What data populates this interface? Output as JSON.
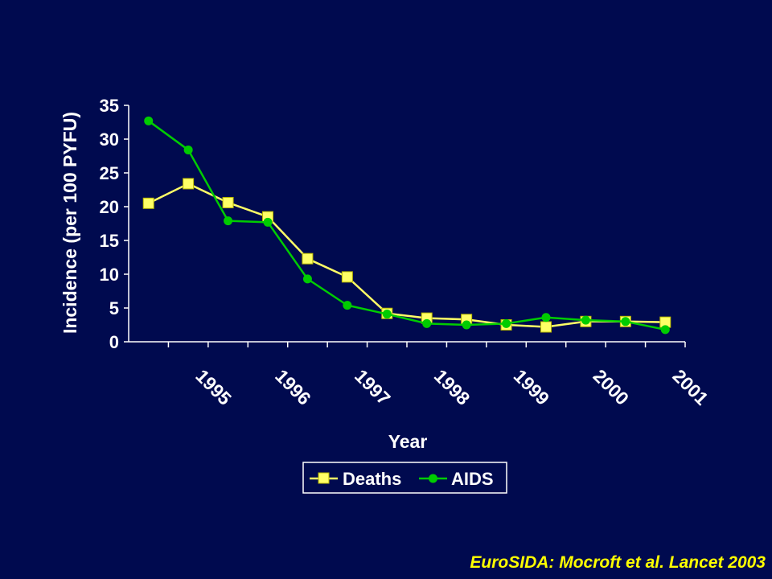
{
  "chart_data": {
    "type": "line",
    "title": "",
    "xlabel": "Year",
    "ylabel": "Incidence (per 100 PYFU)",
    "ylim": [
      0,
      35
    ],
    "y_ticks": [
      "0",
      "5",
      "10",
      "15",
      "20",
      "25",
      "30",
      "35"
    ],
    "x_tick_labels": [
      "1995",
      "1996",
      "1997",
      "1998",
      "1999",
      "2000",
      "2001"
    ],
    "x": [
      1994.25,
      1994.75,
      1995.25,
      1995.75,
      1996.25,
      1996.75,
      1997.25,
      1997.75,
      1998.25,
      1998.75,
      1999.25,
      1999.75,
      2000.25,
      2000.75
    ],
    "series": [
      {
        "name": "Deaths",
        "values": [
          20.5,
          23.4,
          20.6,
          18.5,
          12.3,
          9.6,
          4.2,
          3.5,
          3.3,
          2.5,
          2.2,
          3.0,
          3.0,
          2.9
        ]
      },
      {
        "name": "AIDS",
        "values": [
          32.7,
          28.4,
          17.9,
          17.7,
          9.3,
          5.4,
          4.1,
          2.7,
          2.5,
          2.7,
          3.6,
          3.2,
          3.0,
          1.8
        ]
      }
    ],
    "legend_position": "bottom-center",
    "grid": false,
    "colors": {
      "background": "#000A4F",
      "axis": "#FFFFFF",
      "deaths": "#FFFF66",
      "aids": "#00CC00"
    }
  },
  "citation": "EuroSIDA: Mocroft et al. Lancet 2003"
}
